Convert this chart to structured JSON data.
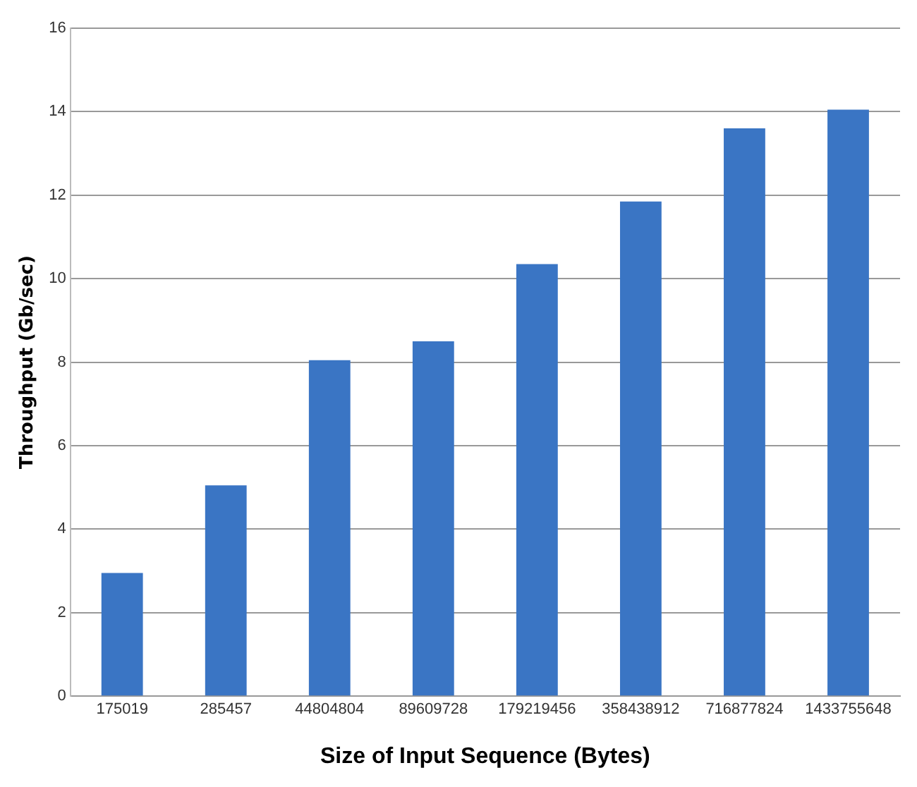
{
  "chart_data": {
    "type": "bar",
    "xlabel": "Size of Input Sequence (Bytes)",
    "ylabel": "Throughput (Gb/sec)",
    "categories": [
      "175019",
      "285457",
      "44804804",
      "89609728",
      "179219456",
      "358438912",
      "716877824",
      "1433755648"
    ],
    "values": [
      2.95,
      5.05,
      8.05,
      8.5,
      10.35,
      11.85,
      13.6,
      14.05
    ],
    "color": "#3a75c4",
    "ylim": [
      0,
      16
    ],
    "yticks": [
      0,
      2,
      4,
      6,
      8,
      10,
      12,
      14,
      16
    ],
    "grid": "y"
  }
}
